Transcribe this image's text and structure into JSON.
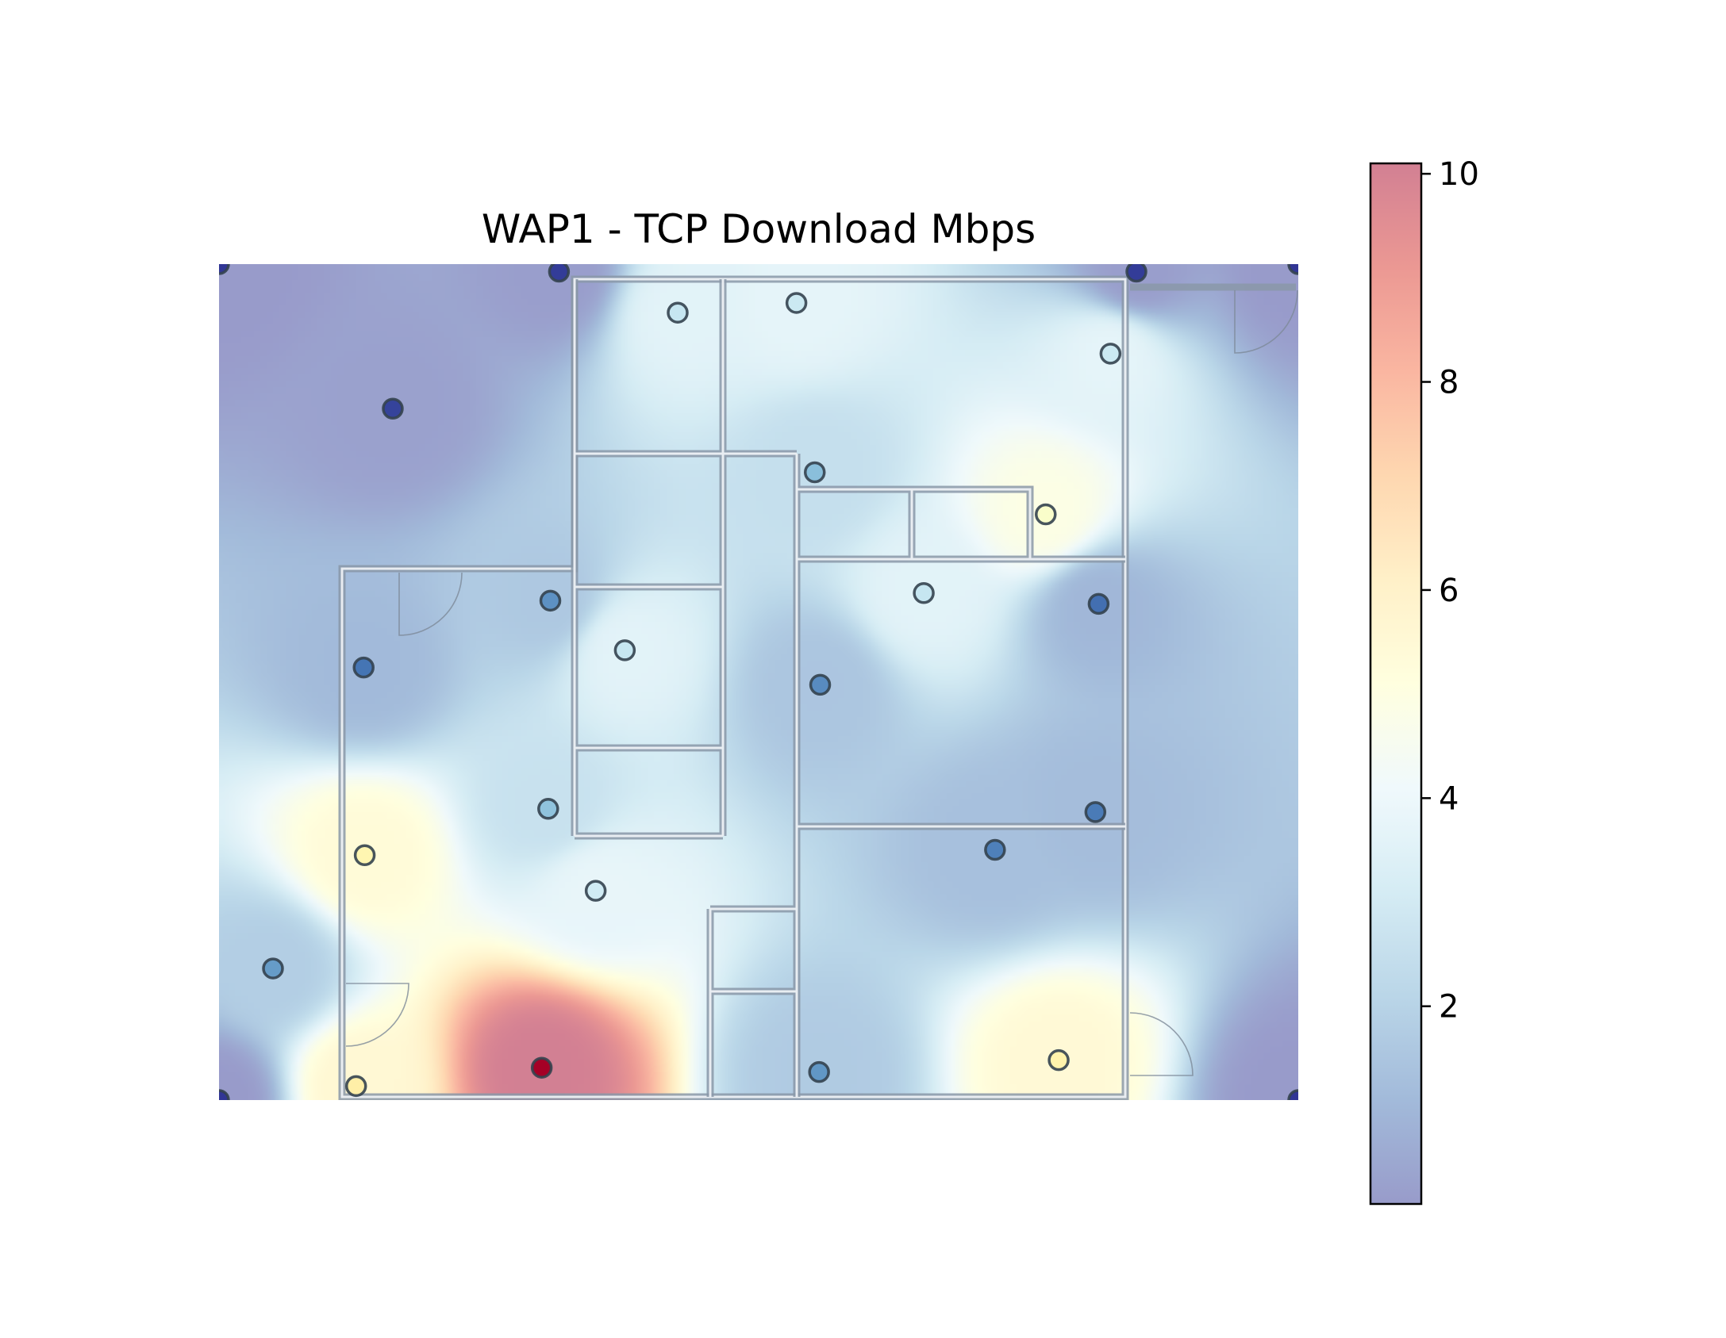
{
  "chart_data": {
    "type": "heatmap",
    "title": "WAP1 - TCP Download Mbps",
    "xlim": [
      0,
      1000
    ],
    "ylim": [
      0,
      775
    ],
    "colorbar": {
      "min": 0.1,
      "max": 10.1,
      "ticks": [
        2,
        4,
        6,
        8,
        10
      ],
      "tick_labels": [
        "2",
        "4",
        "6",
        "8",
        "10"
      ],
      "colormap": "RdYlBu_r",
      "alpha": 0.5
    },
    "points": [
      {
        "x": 0,
        "y": 775,
        "value": 0.1
      },
      {
        "x": 315,
        "y": 768,
        "value": 0.2
      },
      {
        "x": 850,
        "y": 768,
        "value": 0.2
      },
      {
        "x": 1000,
        "y": 775,
        "value": 0.1
      },
      {
        "x": 161,
        "y": 641,
        "value": 0.3
      },
      {
        "x": 425,
        "y": 730,
        "value": 3.6
      },
      {
        "x": 535,
        "y": 739,
        "value": 3.7
      },
      {
        "x": 826,
        "y": 692,
        "value": 3.7
      },
      {
        "x": 552,
        "y": 582,
        "value": 2.5
      },
      {
        "x": 766,
        "y": 543,
        "value": 4.9
      },
      {
        "x": 653,
        "y": 470,
        "value": 3.6
      },
      {
        "x": 815,
        "y": 460,
        "value": 1.0
      },
      {
        "x": 307,
        "y": 463,
        "value": 1.6
      },
      {
        "x": 134,
        "y": 401,
        "value": 1.1
      },
      {
        "x": 376,
        "y": 417,
        "value": 3.6
      },
      {
        "x": 557,
        "y": 385,
        "value": 1.5
      },
      {
        "x": 305,
        "y": 270,
        "value": 2.6
      },
      {
        "x": 812,
        "y": 267,
        "value": 1.2
      },
      {
        "x": 719,
        "y": 232,
        "value": 1.3
      },
      {
        "x": 135,
        "y": 227,
        "value": 5.4
      },
      {
        "x": 349,
        "y": 194,
        "value": 3.8
      },
      {
        "x": 50,
        "y": 122,
        "value": 1.8
      },
      {
        "x": 299,
        "y": 30,
        "value": 10.1
      },
      {
        "x": 556,
        "y": 26,
        "value": 1.7
      },
      {
        "x": 778,
        "y": 37,
        "value": 5.5
      },
      {
        "x": 127,
        "y": 13,
        "value": 5.6
      },
      {
        "x": 0,
        "y": 0,
        "value": 0.1
      },
      {
        "x": 1000,
        "y": 0,
        "value": 0.1
      }
    ]
  }
}
